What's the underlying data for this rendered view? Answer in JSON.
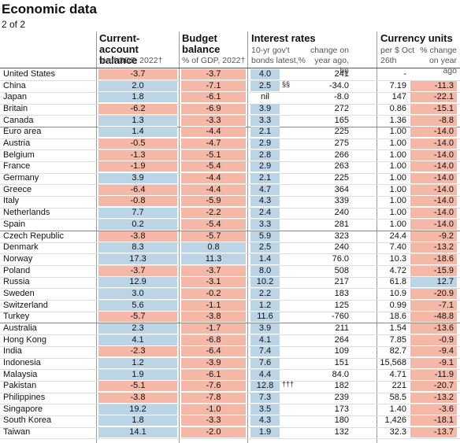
{
  "header": {
    "title": "Economic data",
    "subtitle": "2 of 2"
  },
  "columns": {
    "current_account": {
      "title": "Current-account balance",
      "unit": "% of GDP, 2022†"
    },
    "budget": {
      "title": "Budget balance",
      "unit": "% of GDP, 2022†"
    },
    "interest": {
      "title": "Interest rates",
      "bond_yield": "10-yr gov't bonds latest,%",
      "bond_change": "change on year ago, bp"
    },
    "currency": {
      "title": "Currency units",
      "per_dollar": "per $ Oct 26th",
      "fx_change": "% change on year ago"
    }
  },
  "table": {
    "rows": [
      {
        "country": "United States",
        "current_account": "-3.7",
        "budget": "-3.7",
        "bond_yield": "4.0",
        "bond_change": "241",
        "per_dollar": "-"
      },
      {
        "country": "China",
        "current_account": "2.0",
        "budget": "-7.1",
        "bond_yield": "2.5",
        "note": "§§",
        "bond_change": "-34.0",
        "per_dollar": "7.19",
        "fx_change": "-11.3"
      },
      {
        "country": "Japan",
        "current_account": "1.8",
        "budget": "-6.1",
        "bond_yield": "nil",
        "bond_change": "-8.0",
        "per_dollar": "147",
        "fx_change": "-22.1"
      },
      {
        "country": "Britain",
        "current_account": "-6.2",
        "budget": "-6.9",
        "bond_yield": "3.9",
        "bond_change": "272",
        "per_dollar": "0.86",
        "fx_change": "-15.1"
      },
      {
        "country": "Canada",
        "current_account": "1.3",
        "budget": "-3.3",
        "bond_yield": "3.3",
        "bond_change": "165",
        "per_dollar": "1.36",
        "fx_change": "-8.8"
      },
      {
        "country": "Euro area",
        "current_account": "1.4",
        "budget": "-4.4",
        "bond_yield": "2.1",
        "bond_change": "225",
        "per_dollar": "1.00",
        "fx_change": "-14.0"
      },
      {
        "country": "Austria",
        "current_account": "-0.5",
        "budget": "-4.7",
        "bond_yield": "2.9",
        "bond_change": "275",
        "per_dollar": "1.00",
        "fx_change": "-14.0"
      },
      {
        "country": "Belgium",
        "current_account": "-1.3",
        "budget": "-5.1",
        "bond_yield": "2.8",
        "bond_change": "266",
        "per_dollar": "1.00",
        "fx_change": "-14.0"
      },
      {
        "country": "France",
        "current_account": "-1.9",
        "budget": "-5.4",
        "bond_yield": "2.9",
        "bond_change": "263",
        "per_dollar": "1.00",
        "fx_change": "-14.0"
      },
      {
        "country": "Germany",
        "current_account": "3.9",
        "budget": "-4.4",
        "bond_yield": "2.1",
        "bond_change": "225",
        "per_dollar": "1.00",
        "fx_change": "-14.0"
      },
      {
        "country": "Greece",
        "current_account": "-6.4",
        "budget": "-4.4",
        "bond_yield": "4.7",
        "bond_change": "364",
        "per_dollar": "1.00",
        "fx_change": "-14.0"
      },
      {
        "country": "Italy",
        "current_account": "-0.8",
        "budget": "-5.9",
        "bond_yield": "4.3",
        "bond_change": "339",
        "per_dollar": "1.00",
        "fx_change": "-14.0"
      },
      {
        "country": "Netherlands",
        "current_account": "7.7",
        "budget": "-2.2",
        "bond_yield": "2.4",
        "bond_change": "240",
        "per_dollar": "1.00",
        "fx_change": "-14.0"
      },
      {
        "country": "Spain",
        "current_account": "0.2",
        "budget": "-5.4",
        "bond_yield": "3.3",
        "bond_change": "281",
        "per_dollar": "1.00",
        "fx_change": "-14.0"
      },
      {
        "country": "Czech Republic",
        "current_account": "-3.8",
        "budget": "-5.7",
        "bond_yield": "5.9",
        "bond_change": "323",
        "per_dollar": "24.4",
        "fx_change": "-9.2"
      },
      {
        "country": "Denmark",
        "current_account": "8.3",
        "budget": "0.8",
        "bond_yield": "2.5",
        "bond_change": "240",
        "per_dollar": "7.40",
        "fx_change": "-13.2"
      },
      {
        "country": "Norway",
        "current_account": "17.3",
        "budget": "11.3",
        "bond_yield": "1.4",
        "bond_change": "76.0",
        "per_dollar": "10.3",
        "fx_change": "-18.6"
      },
      {
        "country": "Poland",
        "current_account": "-3.7",
        "budget": "-3.7",
        "bond_yield": "8.0",
        "bond_change": "508",
        "per_dollar": "4.72",
        "fx_change": "-15.9"
      },
      {
        "country": "Russia",
        "current_account": "12.9",
        "budget": "-3.1",
        "bond_yield": "10.2",
        "bond_change": "217",
        "per_dollar": "61.8",
        "fx_change": "12.7"
      },
      {
        "country": "Sweden",
        "current_account": "3.0",
        "budget": "-0.2",
        "bond_yield": "2.2",
        "bond_change": "183",
        "per_dollar": "10.9",
        "fx_change": "-20.9"
      },
      {
        "country": "Switzerland",
        "current_account": "5.6",
        "budget": "-1.1",
        "bond_yield": "1.2",
        "bond_change": "125",
        "per_dollar": "0.99",
        "fx_change": "-7.1"
      },
      {
        "country": "Turkey",
        "current_account": "-5.7",
        "budget": "-3.8",
        "bond_yield": "11.6",
        "bond_change": "-760",
        "per_dollar": "18.6",
        "fx_change": "-48.8"
      },
      {
        "country": "Australia",
        "current_account": "2.3",
        "budget": "-1.7",
        "bond_yield": "3.9",
        "bond_change": "211",
        "per_dollar": "1.54",
        "fx_change": "-13.6"
      },
      {
        "country": "Hong Kong",
        "current_account": "4.1",
        "budget": "-6.8",
        "bond_yield": "4.1",
        "bond_change": "264",
        "per_dollar": "7.85",
        "fx_change": "-0.9"
      },
      {
        "country": "India",
        "current_account": "-2.3",
        "budget": "-6.4",
        "bond_yield": "7.4",
        "bond_change": "109",
        "per_dollar": "82.7",
        "fx_change": "-9.4"
      },
      {
        "country": "Indonesia",
        "current_account": "1.2",
        "budget": "-3.9",
        "bond_yield": "7.6",
        "bond_change": "151",
        "per_dollar": "15,568",
        "fx_change": "-9.1"
      },
      {
        "country": "Malaysia",
        "current_account": "1.9",
        "budget": "-6.1",
        "bond_yield": "4.4",
        "bond_change": "84.0",
        "per_dollar": "4.71",
        "fx_change": "-11.9"
      },
      {
        "country": "Pakistan",
        "current_account": "-5.1",
        "budget": "-7.6",
        "bond_yield": "12.8",
        "note": "†††",
        "bond_change": "182",
        "per_dollar": "221",
        "fx_change": "-20.7"
      },
      {
        "country": "Philippines",
        "current_account": "-3.8",
        "budget": "-7.8",
        "bond_yield": "7.3",
        "bond_change": "239",
        "per_dollar": "58.5",
        "fx_change": "-13.2"
      },
      {
        "country": "Singapore",
        "current_account": "19.2",
        "budget": "-1.0",
        "bond_yield": "3.5",
        "bond_change": "173",
        "per_dollar": "1.40",
        "fx_change": "-3.6"
      },
      {
        "country": "South Korea",
        "current_account": "1.8",
        "budget": "-3.3",
        "bond_yield": "4.3",
        "bond_change": "180",
        "per_dollar": "1,426",
        "fx_change": "-18.1"
      },
      {
        "country": "Taiwan",
        "current_account": "14.1",
        "budget": "-2.0",
        "bond_yield": "1.9",
        "bond_change": "132",
        "per_dollar": "32.3",
        "fx_change": "-13.7"
      }
    ]
  }
}
